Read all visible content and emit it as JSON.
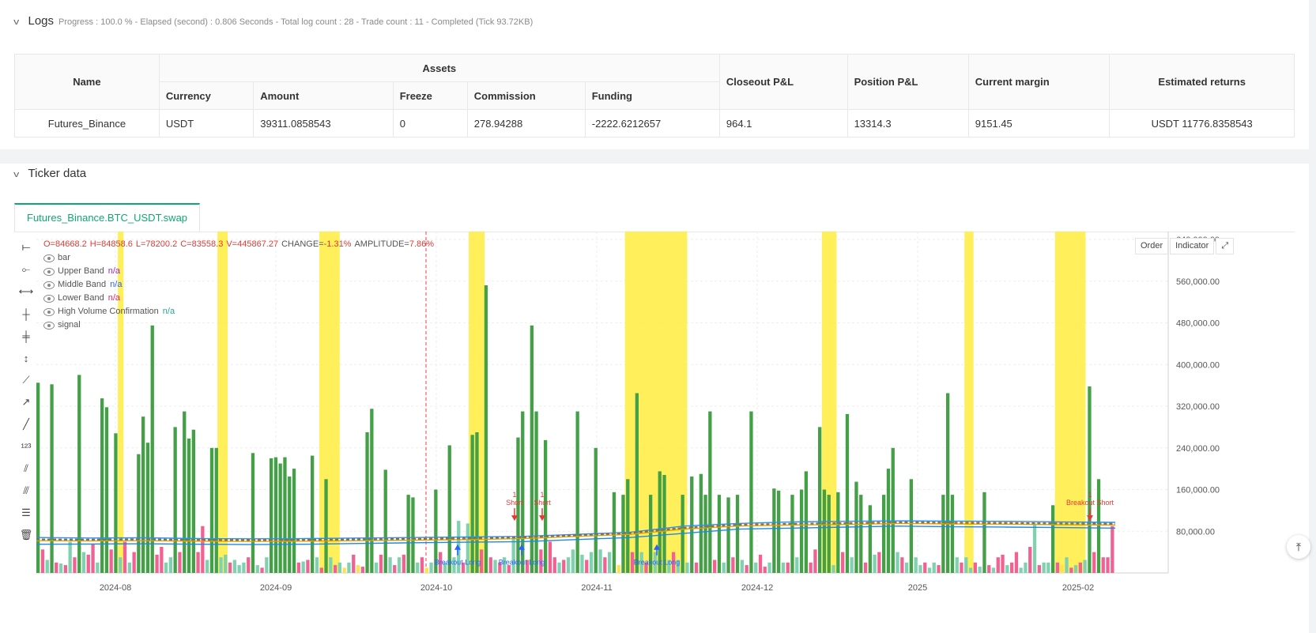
{
  "logs": {
    "title": "Logs",
    "summary": "Progress : 100.0 % - Elapsed (second) : 0.806  Seconds - Total log count : 28 - Trade count : 11 - Completed (Tick 93.72KB)",
    "table": {
      "headers": {
        "name": "Name",
        "assets": "Assets",
        "currency": "Currency",
        "amount": "Amount",
        "freeze": "Freeze",
        "commission": "Commission",
        "funding": "Funding",
        "closeout": "Closeout P&L",
        "position": "Position P&L",
        "margin": "Current margin",
        "returns": "Estimated returns"
      },
      "row": {
        "name": "Futures_Binance",
        "currency": "USDT",
        "amount": "39311.0858543",
        "freeze": "0",
        "commission": "278.94288",
        "funding": "-2222.6212657",
        "closeout": "964.1",
        "position": "13314.3",
        "margin": "9151.45",
        "returns": "USDT 11776.8358543"
      }
    }
  },
  "ticker": {
    "title": "Ticker data",
    "tab": "Futures_Binance.BTC_USDT.swap",
    "ohlc": {
      "o": "O=84668.2",
      "h": "H=84858.6",
      "l": "L=78200.2",
      "c": "C=83558.3",
      "v": "V=445867.27",
      "change": "CHANGE=-1.31%",
      "amp": "AMPLITUDE=7.86%"
    },
    "legend": [
      {
        "label": "bar",
        "value": "",
        "color": "#555"
      },
      {
        "label": "Upper Band",
        "value": "n/a",
        "color": "#9c27b0"
      },
      {
        "label": "Middle Band",
        "value": "n/a",
        "color": "#2962ff"
      },
      {
        "label": "Lower Band",
        "value": "n/a",
        "color": "#e91e63"
      },
      {
        "label": "High Volume Confirmation",
        "value": "n/a",
        "color": "#26a69a"
      },
      {
        "label": "signal",
        "value": "",
        "color": "#555"
      }
    ],
    "buttons": {
      "order": "Order",
      "indicator": "Indicator"
    }
  },
  "chart_data": {
    "type": "bar",
    "ylim": [
      0,
      640000
    ],
    "y_ticks": [
      "640,000.00",
      "560,000.00",
      "480,000.00",
      "400,000.00",
      "320,000.00",
      "240,000.00",
      "160,000.00",
      "80,000.00"
    ],
    "x_ticks": [
      "2024-08",
      "2024-09",
      "2024-10",
      "2024-11",
      "2024-12",
      "2025",
      "2025-02"
    ],
    "volume_series": [
      [
        365000,
        "g"
      ],
      [
        45000,
        "r"
      ],
      [
        25000,
        "t"
      ],
      [
        362000,
        "g"
      ],
      [
        20000,
        "r"
      ],
      [
        18000,
        "t"
      ],
      [
        15000,
        "r"
      ],
      [
        60000,
        "t"
      ],
      [
        30000,
        "r"
      ],
      [
        380000,
        "g"
      ],
      [
        40000,
        "t"
      ],
      [
        35000,
        "r"
      ],
      [
        55000,
        "r"
      ],
      [
        20000,
        "t"
      ],
      [
        335000,
        "g"
      ],
      [
        318000,
        "g"
      ],
      [
        45000,
        "r"
      ],
      [
        268000,
        "g"
      ],
      [
        30000,
        "t"
      ],
      [
        60000,
        "r"
      ],
      [
        20000,
        "t"
      ],
      [
        40000,
        "r"
      ],
      [
        228000,
        "g"
      ],
      [
        300000,
        "g"
      ],
      [
        250000,
        "g"
      ],
      [
        475000,
        "g"
      ],
      [
        35000,
        "r"
      ],
      [
        50000,
        "r"
      ],
      [
        20000,
        "t"
      ],
      [
        30000,
        "t"
      ],
      [
        280000,
        "g"
      ],
      [
        40000,
        "r"
      ],
      [
        310000,
        "g"
      ],
      [
        258000,
        "g"
      ],
      [
        275000,
        "g"
      ],
      [
        40000,
        "r"
      ],
      [
        90000,
        "r"
      ],
      [
        25000,
        "t"
      ],
      [
        240000,
        "g"
      ],
      [
        240000,
        "g"
      ],
      [
        30000,
        "t"
      ],
      [
        35000,
        "t"
      ],
      [
        20000,
        "r"
      ],
      [
        25000,
        "t"
      ],
      [
        15000,
        "t"
      ],
      [
        20000,
        "t"
      ],
      [
        30000,
        "r"
      ],
      [
        230000,
        "g"
      ],
      [
        15000,
        "t"
      ],
      [
        10000,
        "r"
      ],
      [
        30000,
        "t"
      ],
      [
        220000,
        "g"
      ],
      [
        222000,
        "g"
      ],
      [
        210000,
        "g"
      ],
      [
        222000,
        "g"
      ],
      [
        185000,
        "g"
      ],
      [
        200000,
        "g"
      ],
      [
        20000,
        "r"
      ],
      [
        22000,
        "t"
      ],
      [
        25000,
        "r"
      ],
      [
        225000,
        "g"
      ],
      [
        30000,
        "t"
      ],
      [
        10000,
        "r"
      ],
      [
        180000,
        "g"
      ],
      [
        30000,
        "t"
      ],
      [
        15000,
        "r"
      ],
      [
        20000,
        "t"
      ],
      [
        10000,
        "y"
      ],
      [
        20000,
        "t"
      ],
      [
        35000,
        "r"
      ],
      [
        15000,
        "y"
      ],
      [
        12000,
        "r"
      ],
      [
        270000,
        "g"
      ],
      [
        315000,
        "g"
      ],
      [
        20000,
        "t"
      ],
      [
        35000,
        "r"
      ],
      [
        198000,
        "g"
      ],
      [
        30000,
        "t"
      ],
      [
        15000,
        "r"
      ],
      [
        30000,
        "t"
      ],
      [
        35000,
        "r"
      ],
      [
        150000,
        "g"
      ],
      [
        145000,
        "g"
      ],
      [
        20000,
        "t"
      ],
      [
        30000,
        "r"
      ],
      [
        10000,
        "y"
      ],
      [
        20000,
        "t"
      ],
      [
        160000,
        "g"
      ],
      [
        40000,
        "r"
      ],
      [
        20000,
        "t"
      ],
      [
        245000,
        "g"
      ],
      [
        30000,
        "t"
      ],
      [
        100000,
        "t"
      ],
      [
        20000,
        "r"
      ],
      [
        95000,
        "t"
      ],
      [
        265000,
        "g"
      ],
      [
        270000,
        "g"
      ],
      [
        45000,
        "r"
      ],
      [
        552000,
        "g"
      ],
      [
        30000,
        "r"
      ],
      [
        25000,
        "t"
      ],
      [
        20000,
        "r"
      ],
      [
        30000,
        "t"
      ],
      [
        15000,
        "r"
      ],
      [
        65000,
        "t"
      ],
      [
        260000,
        "g"
      ],
      [
        310000,
        "g"
      ],
      [
        25000,
        "r"
      ],
      [
        475000,
        "g"
      ],
      [
        310000,
        "g"
      ],
      [
        45000,
        "r"
      ],
      [
        255000,
        "g"
      ],
      [
        60000,
        "r"
      ],
      [
        30000,
        "r"
      ],
      [
        20000,
        "t"
      ],
      [
        25000,
        "r"
      ],
      [
        30000,
        "t"
      ],
      [
        45000,
        "t"
      ],
      [
        310000,
        "g"
      ],
      [
        35000,
        "t"
      ],
      [
        25000,
        "r"
      ],
      [
        40000,
        "t"
      ],
      [
        240000,
        "g"
      ],
      [
        45000,
        "t"
      ],
      [
        30000,
        "r"
      ],
      [
        40000,
        "t"
      ],
      [
        155000,
        "g"
      ],
      [
        15000,
        "y"
      ],
      [
        150000,
        "g"
      ],
      [
        180000,
        "g"
      ],
      [
        40000,
        "r"
      ],
      [
        345000,
        "g"
      ],
      [
        40000,
        "t"
      ],
      [
        20000,
        "r"
      ],
      [
        150000,
        "g"
      ],
      [
        40000,
        "t"
      ],
      [
        195000,
        "g"
      ],
      [
        188000,
        "g"
      ],
      [
        25000,
        "t"
      ],
      [
        40000,
        "r"
      ],
      [
        25000,
        "t"
      ],
      [
        150000,
        "g"
      ],
      [
        20000,
        "t"
      ],
      [
        185000,
        "g"
      ],
      [
        20000,
        "r"
      ],
      [
        190000,
        "g"
      ],
      [
        150000,
        "g"
      ],
      [
        310000,
        "g"
      ],
      [
        25000,
        "r"
      ],
      [
        150000,
        "g"
      ],
      [
        20000,
        "t"
      ],
      [
        145000,
        "g"
      ],
      [
        30000,
        "r"
      ],
      [
        150000,
        "g"
      ],
      [
        25000,
        "t"
      ],
      [
        15000,
        "r"
      ],
      [
        310000,
        "g"
      ],
      [
        20000,
        "t"
      ],
      [
        35000,
        "r"
      ],
      [
        12000,
        "r"
      ],
      [
        20000,
        "t"
      ],
      [
        162000,
        "g"
      ],
      [
        158000,
        "g"
      ],
      [
        20000,
        "t"
      ],
      [
        20000,
        "r"
      ],
      [
        150000,
        "g"
      ],
      [
        30000,
        "t"
      ],
      [
        160000,
        "g"
      ],
      [
        195000,
        "g"
      ],
      [
        20000,
        "r"
      ],
      [
        45000,
        "r"
      ],
      [
        280000,
        "g"
      ],
      [
        160000,
        "g"
      ],
      [
        150000,
        "g"
      ],
      [
        15000,
        "t"
      ],
      [
        155000,
        "g"
      ],
      [
        40000,
        "r"
      ],
      [
        305000,
        "g"
      ],
      [
        30000,
        "t"
      ],
      [
        175000,
        "g"
      ],
      [
        150000,
        "g"
      ],
      [
        20000,
        "r"
      ],
      [
        130000,
        "g"
      ],
      [
        35000,
        "t"
      ],
      [
        40000,
        "r"
      ],
      [
        150000,
        "g"
      ],
      [
        200000,
        "g"
      ],
      [
        240000,
        "g"
      ],
      [
        40000,
        "t"
      ],
      [
        30000,
        "r"
      ],
      [
        20000,
        "t"
      ],
      [
        180000,
        "g"
      ],
      [
        30000,
        "t"
      ],
      [
        15000,
        "t"
      ],
      [
        20000,
        "r"
      ],
      [
        10000,
        "t"
      ],
      [
        20000,
        "t"
      ],
      [
        15000,
        "r"
      ],
      [
        150000,
        "g"
      ],
      [
        345000,
        "g"
      ],
      [
        150000,
        "g"
      ],
      [
        30000,
        "t"
      ],
      [
        20000,
        "r"
      ],
      [
        30000,
        "t"
      ],
      [
        10000,
        "t"
      ],
      [
        20000,
        "r"
      ],
      [
        12000,
        "t"
      ],
      [
        155000,
        "g"
      ],
      [
        15000,
        "r"
      ],
      [
        10000,
        "t"
      ],
      [
        30000,
        "r"
      ],
      [
        35000,
        "r"
      ],
      [
        15000,
        "t"
      ],
      [
        20000,
        "r"
      ],
      [
        40000,
        "r"
      ],
      [
        10000,
        "t"
      ],
      [
        20000,
        "t"
      ],
      [
        50000,
        "r"
      ],
      [
        95000,
        "t"
      ],
      [
        15000,
        "r"
      ],
      [
        20000,
        "t"
      ],
      [
        20000,
        "t"
      ],
      [
        130000,
        "g"
      ],
      [
        20000,
        "r"
      ],
      [
        15000,
        "y"
      ],
      [
        30000,
        "t"
      ],
      [
        10000,
        "r"
      ],
      [
        15000,
        "t"
      ],
      [
        20000,
        "r"
      ],
      [
        25000,
        "t"
      ],
      [
        358000,
        "g"
      ],
      [
        40000,
        "r"
      ],
      [
        180000,
        "g"
      ],
      [
        30000,
        "r"
      ],
      [
        30000,
        "r"
      ],
      [
        90000,
        "r"
      ]
    ],
    "highlight_zones_fraction": [
      [
        0.072,
        0.077
      ],
      [
        0.16,
        0.169
      ],
      [
        0.25,
        0.268
      ],
      [
        0.382,
        0.396
      ],
      [
        0.52,
        0.575
      ],
      [
        0.694,
        0.707
      ],
      [
        0.82,
        0.828
      ],
      [
        0.9,
        0.927
      ]
    ],
    "bands": {
      "upper": [
        68000,
        67000,
        67500,
        66000,
        65500,
        66000,
        67000,
        68000,
        69000,
        70000,
        74000,
        78000,
        90000,
        95000,
        98000,
        99000,
        100000,
        99500,
        99000,
        98000,
        97000
      ],
      "middle": [
        62000,
        61500,
        62000,
        61000,
        60500,
        61000,
        62000,
        63000,
        64000,
        66000,
        70000,
        74000,
        84000,
        90000,
        92000,
        93000,
        95000,
        94000,
        93500,
        92500,
        92000
      ],
      "lower": [
        55000,
        55500,
        56000,
        55000,
        54500,
        55000,
        56500,
        58000,
        59000,
        60000,
        64000,
        68000,
        76000,
        84000,
        86000,
        88000,
        90000,
        88500,
        88000,
        87000,
        86000
      ]
    },
    "signals": [
      {
        "label": "Breakout Long",
        "side": "long"
      },
      {
        "label": "Breakout Long",
        "side": "long"
      },
      {
        "label": "Short",
        "side": "short",
        "count": "1"
      },
      {
        "label": "Short",
        "side": "short",
        "count": "1"
      },
      {
        "label": "Breakout Long",
        "side": "long"
      },
      {
        "label": "Breakout Short",
        "side": "short",
        "count": "1"
      }
    ]
  },
  "colors": {
    "green": "#43a047",
    "teal": "#7fd1b0",
    "red": "#f06292",
    "yellow": "#ffe14d",
    "highlight": "#ffec3d",
    "accent": "#0fa870"
  }
}
